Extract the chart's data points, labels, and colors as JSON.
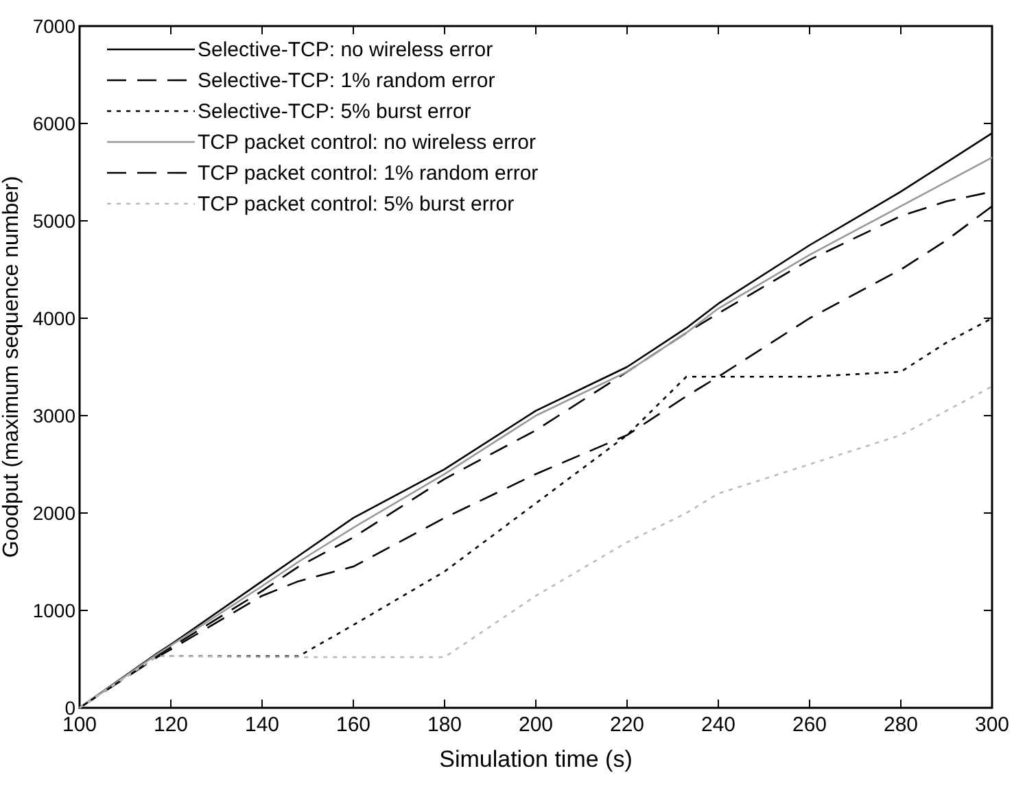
{
  "chart_data": {
    "type": "line",
    "xlabel": "Simulation time (s)",
    "ylabel": "Goodput (maximum sequence number)",
    "x": [
      100,
      117,
      120,
      140,
      148,
      160,
      180,
      200,
      220,
      233,
      240,
      260,
      280,
      290,
      300
    ],
    "xlim": [
      100,
      300
    ],
    "xticks": [
      100,
      120,
      140,
      160,
      180,
      200,
      220,
      240,
      260,
      280,
      300
    ],
    "ylim": [
      0,
      7000
    ],
    "yticks": [
      0,
      1000,
      2000,
      3000,
      4000,
      5000,
      6000,
      7000
    ],
    "grid": false,
    "legend": "top left",
    "marker": "none",
    "series": [
      {
        "name": "Selective-TCP: no wireless error",
        "color": "#000000",
        "line_style": "solid",
        "values": [
          0,
          560,
          650,
          1300,
          1560,
          1950,
          2450,
          3050,
          3500,
          3900,
          4150,
          4750,
          5300,
          5600,
          5900
        ]
      },
      {
        "name": "Selective-TCP: 1% random error",
        "color": "#000000",
        "line_style": "dashed",
        "values": [
          0,
          540,
          620,
          1200,
          1450,
          1750,
          2350,
          2850,
          3450,
          3850,
          4050,
          4600,
          5050,
          5200,
          5300
        ]
      },
      {
        "name": "Selective-TCP: 5% burst error",
        "color": "#000000",
        "line_style": "dotted",
        "values": [
          0,
          530,
          530,
          530,
          530,
          850,
          1400,
          2100,
          2800,
          3400,
          3400,
          3400,
          3450,
          3750,
          4000
        ]
      },
      {
        "name": "TCP packet control: no wireless error",
        "color": "#999999",
        "line_style": "solid",
        "values": [
          0,
          550,
          640,
          1250,
          1500,
          1850,
          2400,
          3000,
          3450,
          3850,
          4100,
          4650,
          5150,
          5400,
          5650
        ]
      },
      {
        "name": "TCP packet control: 1% random error",
        "color": "#000000",
        "line_style": "dashed",
        "values": [
          0,
          520,
          600,
          1150,
          1300,
          1450,
          1950,
          2400,
          2800,
          3200,
          3400,
          4000,
          4500,
          4800,
          5150
        ]
      },
      {
        "name": "TCP packet control: 5% burst error",
        "color": "#bbbbbb",
        "line_style": "dotted",
        "values": [
          0,
          530,
          530,
          520,
          520,
          520,
          520,
          1150,
          1700,
          2000,
          2200,
          2500,
          2800,
          3050,
          3300
        ]
      }
    ]
  }
}
